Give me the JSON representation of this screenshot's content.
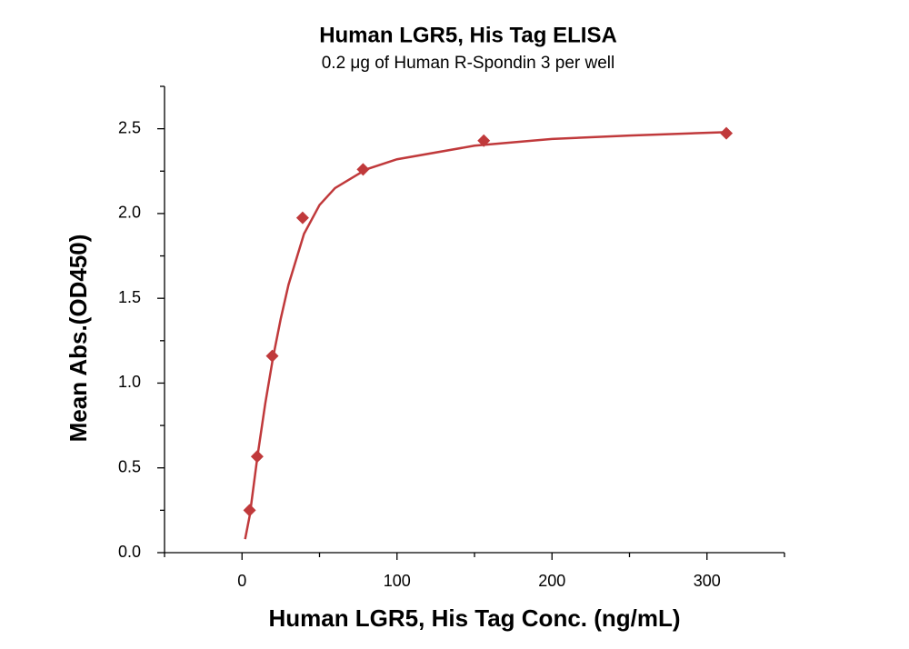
{
  "chart_data": {
    "type": "scatter",
    "title": "Human LGR5, His Tag ELISA",
    "subtitle": "0.2 μg of Human R-Spondin 3 per well",
    "x_label": "Human LGR5, His Tag Conc. (ng/mL)",
    "y_label": "Mean Abs.(OD450)",
    "xlim": [
      -50,
      350
    ],
    "ylim": [
      0,
      2.75
    ],
    "xticks": [
      0,
      100,
      200,
      300
    ],
    "xminorticks": [
      -50,
      50,
      150,
      250,
      350
    ],
    "yticks": [
      {
        "value": 0,
        "label": "0.0"
      },
      0.5,
      {
        "value": 1,
        "label": "1.0"
      },
      1.5,
      {
        "value": 2,
        "label": "2.0"
      },
      2.5
    ],
    "yminorticks": [
      0.25,
      0.75,
      1.25,
      1.75,
      2.25,
      2.75
    ],
    "series": [
      {
        "type": "scatter",
        "color": "#c0393b",
        "x": [
          4.88,
          9.77,
          19.5,
          39.1,
          78.1,
          156,
          312.5
        ],
        "values": [
          0.25,
          0.567,
          1.16,
          1.975,
          2.26,
          2.43,
          2.473
        ]
      },
      {
        "type": "line",
        "color": "#c0393b",
        "x": [
          2,
          5,
          10,
          15,
          20,
          25,
          30,
          40,
          50,
          60,
          80,
          100,
          150,
          200,
          250,
          312.5
        ],
        "values": [
          0.08,
          0.22,
          0.57,
          0.88,
          1.15,
          1.38,
          1.58,
          1.88,
          2.05,
          2.15,
          2.26,
          2.32,
          2.4,
          2.44,
          2.46,
          2.48
        ]
      }
    ]
  }
}
